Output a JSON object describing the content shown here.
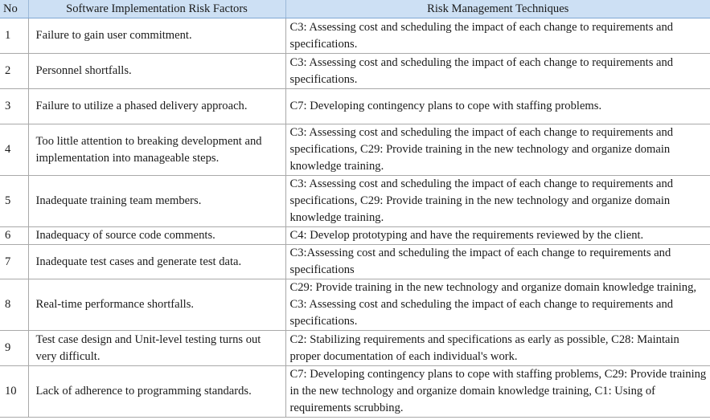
{
  "table": {
    "headers": [
      "No",
      "Software Implementation  Risk Factors",
      "Risk Management Techniques"
    ],
    "rows": [
      {
        "no": "1",
        "risk": "Failure to gain user commitment.",
        "technique": "C3: Assessing cost and scheduling the impact of each change to requirements and specifications."
      },
      {
        "no": "2",
        "risk": "Personnel shortfalls.",
        "technique": "C3: Assessing cost and scheduling the impact of each change to requirements and specifications."
      },
      {
        "no": "3",
        "risk": "Failure to utilize a phased delivery approach.",
        "technique": "C7: Developing contingency plans to cope with staffing problems."
      },
      {
        "no": "4",
        "risk": "Too little attention to breaking development and implementation into manageable steps.",
        "technique": "C3: Assessing cost and scheduling the impact of each change to requirements and specifications, C29: Provide training in the new technology and organize domain knowledge training."
      },
      {
        "no": "5",
        "risk": "Inadequate training team members.",
        "technique": "C3: Assessing cost and scheduling the impact of each change to requirements and specifications, C29: Provide training in the new technology and organize domain knowledge training."
      },
      {
        "no": "6",
        "risk": "Inadequacy of source code comments.",
        "technique": "C4: Develop prototyping and have the requirements reviewed by the client."
      },
      {
        "no": "7",
        "risk": "Inadequate test cases and generate test data.",
        "technique": "C3:Assessing cost and scheduling the impact of each change to requirements and specifications"
      },
      {
        "no": "8",
        "risk": "Real-time performance shortfalls.",
        "technique": "C29: Provide training in the new technology and organize domain knowledge training, C3: Assessing cost and scheduling the impact of each change to requirements and specifications."
      },
      {
        "no": "9",
        "risk": "Test case design and Unit-level testing turns out very difficult.",
        "technique": "C2: Stabilizing requirements and specifications as early as possible, C28: Maintain proper documentation of each individual's work."
      },
      {
        "no": "10",
        "risk": "Lack of adherence to programming standards.",
        "technique": "C7: Developing contingency plans to cope with staffing problems, C29: Provide training in the new technology and organize domain knowledge training, C1: Using of requirements scrubbing."
      }
    ]
  }
}
